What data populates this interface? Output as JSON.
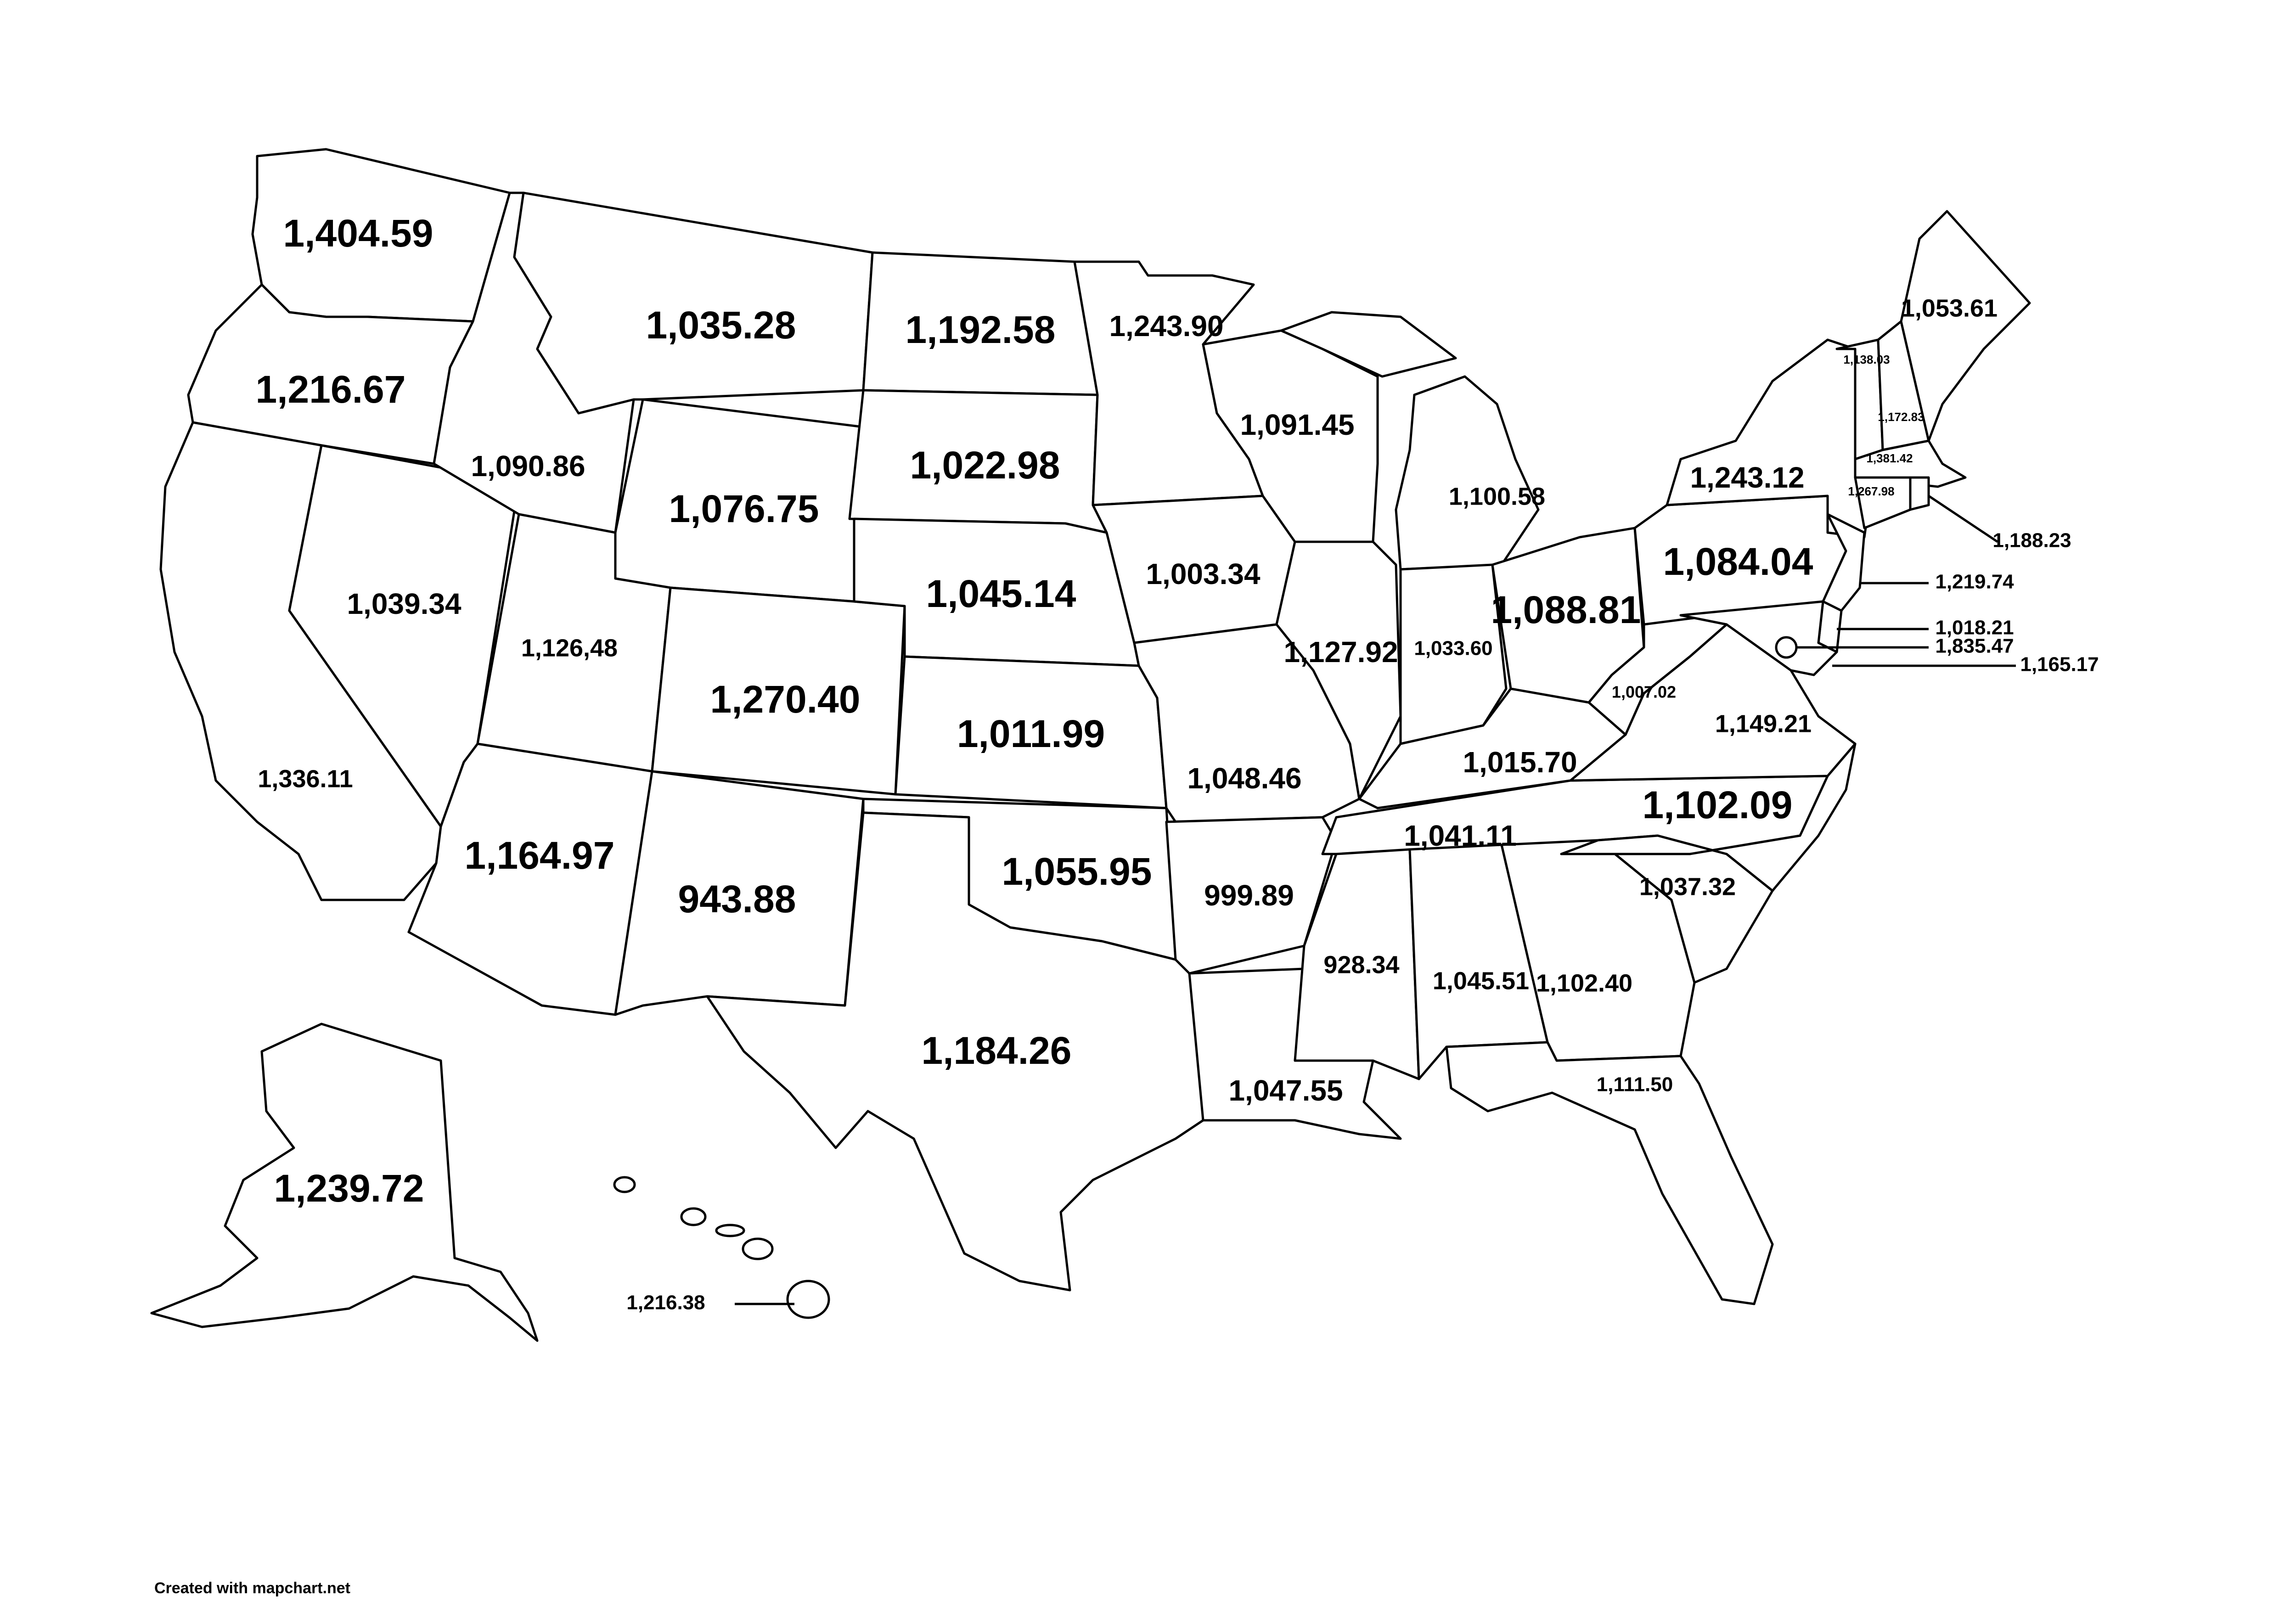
{
  "credit": "Created with mapchart.net",
  "labels": {
    "WA": "1,404.59",
    "OR": "1,216.67",
    "CA": "1,336.11",
    "NV": "1,039.34",
    "ID": "1,090.86",
    "MT": "1,035.28",
    "WY": "1,076.75",
    "UT": "1,126,48",
    "AZ": "1,164.97",
    "CO": "1,270.40",
    "NM": "943.88",
    "ND": "1,192.58",
    "SD": "1,022.98",
    "NE": "1,045.14",
    "KS": "1,011.99",
    "OK": "1,055.95",
    "TX": "1,184.26",
    "MN": "1,243.90",
    "IA": "1,003.34",
    "MO": "1,048.46",
    "AR": "999.89",
    "LA": "1,047.55",
    "WI": "1,091.45",
    "IL": "1,127.92",
    "MI": "1,100.58",
    "IN": "1,033.60",
    "OH": "1,088.81",
    "KY": "1,015.70",
    "TN": "1,041.11",
    "MS": "928.34",
    "AL": "1,045.51",
    "GA": "1,102.40",
    "FL": "1,111.50",
    "SC": "1,037.32",
    "NC": "1,102.09",
    "VA": "1,149.21",
    "WV": "1,007.02",
    "PA": "1,084.04",
    "NY": "1,243.12",
    "VT": "1,138.03",
    "NH": "1,172.83",
    "ME": "1,053.61",
    "MA": "1,381.42",
    "CT": "1,267.98",
    "RI": "1,188.23",
    "NJ": "1,219.74",
    "DE": "1,018.21",
    "DC": "1,835.47",
    "MD": "1,165.17",
    "AK": "1,239.72",
    "HI": "1,216.38"
  }
}
